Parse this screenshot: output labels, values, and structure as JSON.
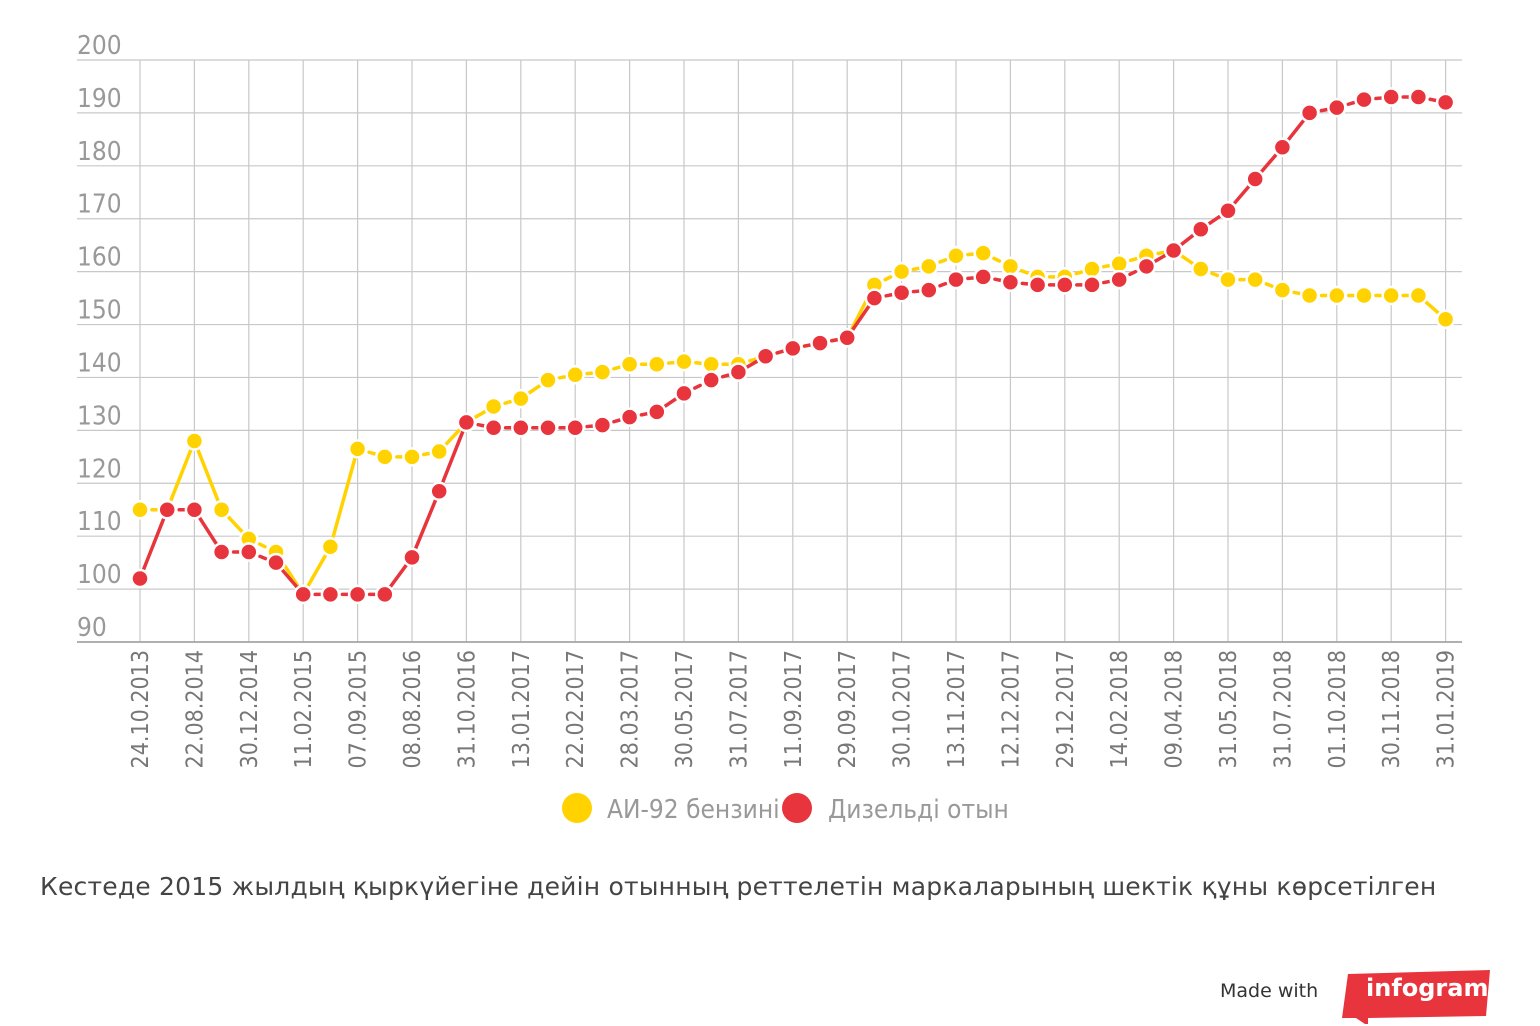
{
  "chart_data": {
    "type": "line",
    "title": "",
    "xlabel": "",
    "ylabel": "",
    "ylim": [
      90,
      200
    ],
    "yticks": [
      90,
      100,
      110,
      120,
      130,
      140,
      150,
      160,
      170,
      180,
      190,
      200
    ],
    "grid": true,
    "legend_position": "bottom",
    "x_tick_labels": [
      "24.10.2013",
      "22.08.2014",
      "30.12.2014",
      "11.02.2015",
      "07.09.2015",
      "08.08.2016",
      "31.10.2016",
      "13.01.2017",
      "22.02.2017",
      "28.03.2017",
      "30.05.2017",
      "31.07.2017",
      "11.09.2017",
      "29.09.2017",
      "30.10.2017",
      "13.11.2017",
      "12.12.2017",
      "29.12.2017",
      "14.02.2018",
      "09.04.2018",
      "31.05.2018",
      "31.07.2018",
      "01.10.2018",
      "30.11.2018",
      "31.01.2019"
    ],
    "series": [
      {
        "name": "АИ-92 бензині",
        "color": "#FFD200",
        "values": [
          115,
          115,
          128,
          115,
          109.5,
          107,
          99,
          108,
          126.5,
          125,
          125,
          126,
          131.5,
          134.5,
          136,
          139.5,
          140.5,
          141,
          142.5,
          142.5,
          143,
          142.5,
          142.5,
          144,
          145.5,
          146.5,
          147.5,
          157.5,
          160,
          161,
          163,
          163.5,
          161,
          159,
          159,
          160.5,
          161.5,
          163,
          164,
          160.5,
          158.5,
          158.5,
          156.5,
          155.5,
          155.5,
          155.5,
          155.5,
          155.5,
          151
        ]
      },
      {
        "name": "Дизельді отын",
        "color": "#E8343C",
        "values": [
          102,
          115,
          115,
          107,
          107,
          105,
          99,
          99,
          99,
          99,
          106,
          118.5,
          131.5,
          130.5,
          130.5,
          130.5,
          130.5,
          131,
          132.5,
          133.5,
          137,
          139.5,
          141,
          144,
          145.5,
          146.5,
          147.5,
          155,
          156,
          156.5,
          158.5,
          159,
          158,
          157.5,
          157.5,
          157.5,
          158.5,
          161,
          164,
          168,
          171.5,
          177.5,
          183.5,
          190,
          191,
          192.5,
          193,
          193,
          192
        ]
      }
    ]
  },
  "caption": "Кестеде 2015 жылдың қыркүйегіне дейін отынның реттелетін маркаларының шектік құны көрсетілген",
  "footer": {
    "made_with": "Made with",
    "brand": "infogram",
    "brand_color": "#E8343C"
  }
}
